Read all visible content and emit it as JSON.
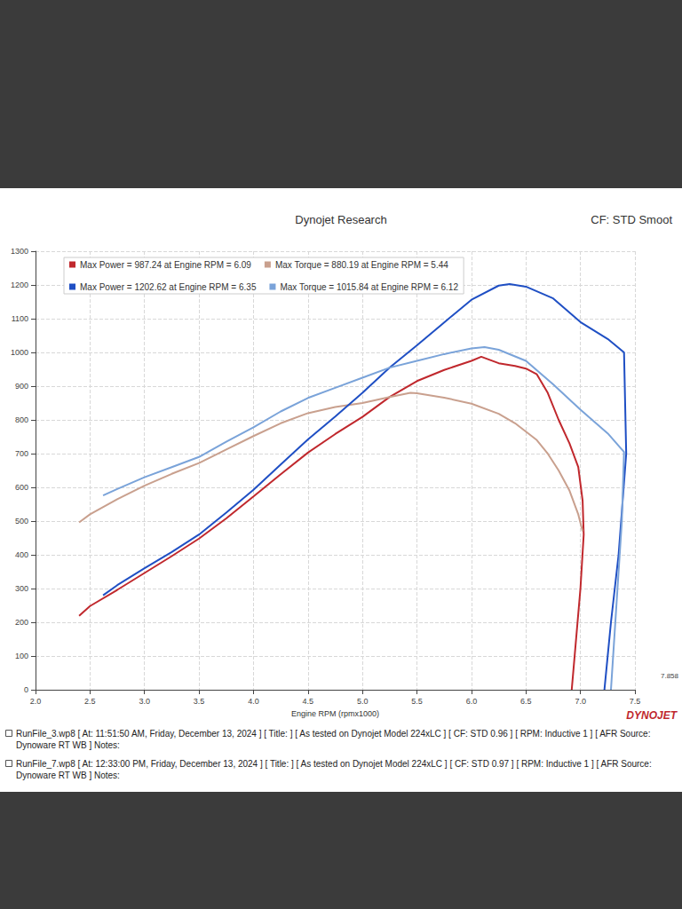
{
  "chart_data": {
    "type": "line",
    "title": "Dynojet Research",
    "subtitle": "CF: STD Smoot",
    "x_label": "Engine RPM (rpmx1000)",
    "xlim": [
      2.0,
      7.5
    ],
    "xticks": [
      {
        "value": 2.0,
        "label": "2.0"
      },
      {
        "value": 2.5,
        "label": "2.5"
      },
      {
        "value": 3.0,
        "label": "3.0"
      },
      {
        "value": 3.5,
        "label": "3.5"
      },
      {
        "value": 4.0,
        "label": "4.0"
      },
      {
        "value": 4.5,
        "label": "4.5"
      },
      {
        "value": 5.0,
        "label": "5.0"
      },
      {
        "value": 5.5,
        "label": "5.5"
      },
      {
        "value": 6.0,
        "label": "6.0"
      },
      {
        "value": 6.5,
        "label": "6.5"
      },
      {
        "value": 7.0,
        "label": "7.0"
      },
      {
        "value": 7.5,
        "label": "7.5"
      }
    ],
    "ylim": [
      0,
      1300
    ],
    "yticks": [
      0,
      100,
      200,
      300,
      400,
      500,
      600,
      700,
      800,
      900,
      1000,
      1100,
      1200,
      1300
    ],
    "grid": true,
    "legend": "upper left",
    "series": [
      {
        "name": "Max Power = 987.24 at Engine RPM = 6.09",
        "color": "#c0282d",
        "x": [
          2.4,
          2.5,
          2.75,
          3.0,
          3.25,
          3.5,
          3.75,
          4.0,
          4.25,
          4.5,
          4.75,
          5.0,
          5.25,
          5.5,
          5.75,
          6.0,
          6.09,
          6.25,
          6.4,
          6.5,
          6.6,
          6.7,
          6.8,
          6.9,
          6.98,
          7.02,
          7.03,
          7.0,
          6.96,
          6.92
        ],
        "values": [
          219,
          248,
          296,
          346,
          396,
          448,
          508,
          573,
          639,
          703,
          758,
          809,
          868,
          915,
          948,
          975,
          987.24,
          968,
          960,
          952,
          935,
          880,
          800,
          730,
          660,
          560,
          460,
          300,
          150,
          0
        ]
      },
      {
        "name": "Max Torque = 880.19 at Engine RPM = 5.44",
        "color": "#c9a08e",
        "x": [
          2.4,
          2.5,
          2.75,
          3.0,
          3.25,
          3.5,
          3.75,
          4.0,
          4.25,
          4.5,
          4.75,
          5.0,
          5.25,
          5.44,
          5.5,
          5.75,
          6.0,
          6.25,
          6.4,
          6.5,
          6.6,
          6.7,
          6.8,
          6.9,
          6.98,
          7.02
        ],
        "values": [
          496,
          520,
          565,
          605,
          640,
          672,
          712,
          752,
          790,
          820,
          838,
          850,
          868,
          880.19,
          879,
          866,
          848,
          818,
          790,
          765,
          740,
          700,
          650,
          590,
          520,
          470
        ]
      },
      {
        "name": "Max Power = 1202.62 at Engine RPM = 6.35",
        "color": "#1f4fc4",
        "x": [
          2.62,
          2.75,
          3.0,
          3.25,
          3.5,
          3.75,
          4.0,
          4.25,
          4.5,
          4.75,
          5.0,
          5.25,
          5.5,
          5.75,
          6.0,
          6.25,
          6.35,
          6.5,
          6.75,
          7.0,
          7.25,
          7.4,
          7.42,
          7.35,
          7.28,
          7.22
        ],
        "values": [
          280,
          310,
          360,
          408,
          460,
          525,
          593,
          668,
          742,
          810,
          880,
          955,
          1021,
          1089,
          1156,
          1198,
          1202.62,
          1195,
          1160,
          1090,
          1040,
          1000,
          700,
          400,
          200,
          0
        ]
      },
      {
        "name": "Max Torque = 1015.84 at Engine RPM = 6.12",
        "color": "#7aa3d9",
        "x": [
          2.62,
          2.75,
          3.0,
          3.25,
          3.5,
          3.75,
          4.0,
          4.25,
          4.5,
          4.75,
          5.0,
          5.25,
          5.5,
          5.75,
          6.0,
          6.12,
          6.25,
          6.5,
          6.75,
          7.0,
          7.25,
          7.4,
          7.38,
          7.33,
          7.28
        ],
        "values": [
          576,
          595,
          630,
          660,
          690,
          735,
          778,
          825,
          865,
          895,
          925,
          955,
          975,
          995,
          1012,
          1015.84,
          1008,
          975,
          905,
          830,
          760,
          705,
          500,
          250,
          0
        ]
      }
    ],
    "annotations": [
      "7.858",
      "DYNOJET"
    ],
    "footer": [
      "RunFile_3.wp8 [ At: 11:51:50 AM, Friday, December 13, 2024 ] [ Title: ] [ As tested on Dynojet Model 224xLC ] [ CF: STD 0.96 ] [ RPM: Inductive 1 ] [ AFR Source: Dynoware RT WB ] Notes:",
      "RunFile_7.wp8 [ At: 12:33:00 PM, Friday, December 13, 2024 ] [ Title: ] [ As tested on Dynojet Model 224xLC ] [ CF: STD 0.97 ] [ RPM: Inductive 1 ] [ AFR Source: Dynoware RT WB ] Notes:"
    ]
  }
}
